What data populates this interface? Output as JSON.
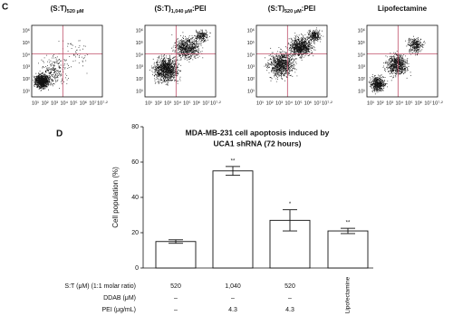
{
  "panel_c": {
    "label": "C",
    "plots": [
      {
        "title_main": "(S:T)",
        "title_sub": "520 μM",
        "title_tail": null
      },
      {
        "title_main": "(S:T)",
        "title_sub": "1,040 μM",
        "title_tail": ":PEI"
      },
      {
        "title_main": "(S:T)",
        "title_sub": "520 μM",
        "title_tail": ":PEI"
      },
      {
        "title_main": "Lipofectamine",
        "title_sub": null,
        "title_tail": null
      }
    ],
    "xtick_labels": [
      "10¹",
      "10²",
      "10³",
      "10⁴",
      "10⁵",
      "10⁶",
      "10⁷",
      "10⁷·²"
    ],
    "ytick_labels": [
      "10⁶",
      "10⁵",
      "10⁴",
      "10³",
      "10²",
      "10¹"
    ]
  },
  "chart_data": {
    "type": "bar",
    "panel_label": "D",
    "title": [
      "MDA-MB-231 cell apoptosis induced by",
      "UCA1 shRNA (72 hours)"
    ],
    "y_label": "Cell population (%)",
    "values": [
      15,
      55,
      27,
      21
    ],
    "errors": [
      1,
      2.5,
      6,
      1.5
    ],
    "annotations": [
      null,
      "**",
      "*",
      "**"
    ],
    "color": "#ffffff",
    "edge_color": "#111111",
    "ylim": [
      0,
      80
    ],
    "yticks": [
      0,
      20,
      40,
      60,
      80
    ]
  },
  "table": {
    "rows": [
      {
        "label": "S:T (μM) (1:1 molar ratio)",
        "cells": [
          "520",
          "1,040",
          "520",
          null
        ]
      },
      {
        "label": "DDAB (μM)",
        "cells": [
          "–",
          "–",
          "–",
          null
        ]
      },
      {
        "label": "PEI (μg/mL)",
        "cells": [
          "–",
          "4.3",
          "4.3",
          null
        ]
      }
    ],
    "span_label": "Lipofectamine",
    "span_column": 3
  }
}
